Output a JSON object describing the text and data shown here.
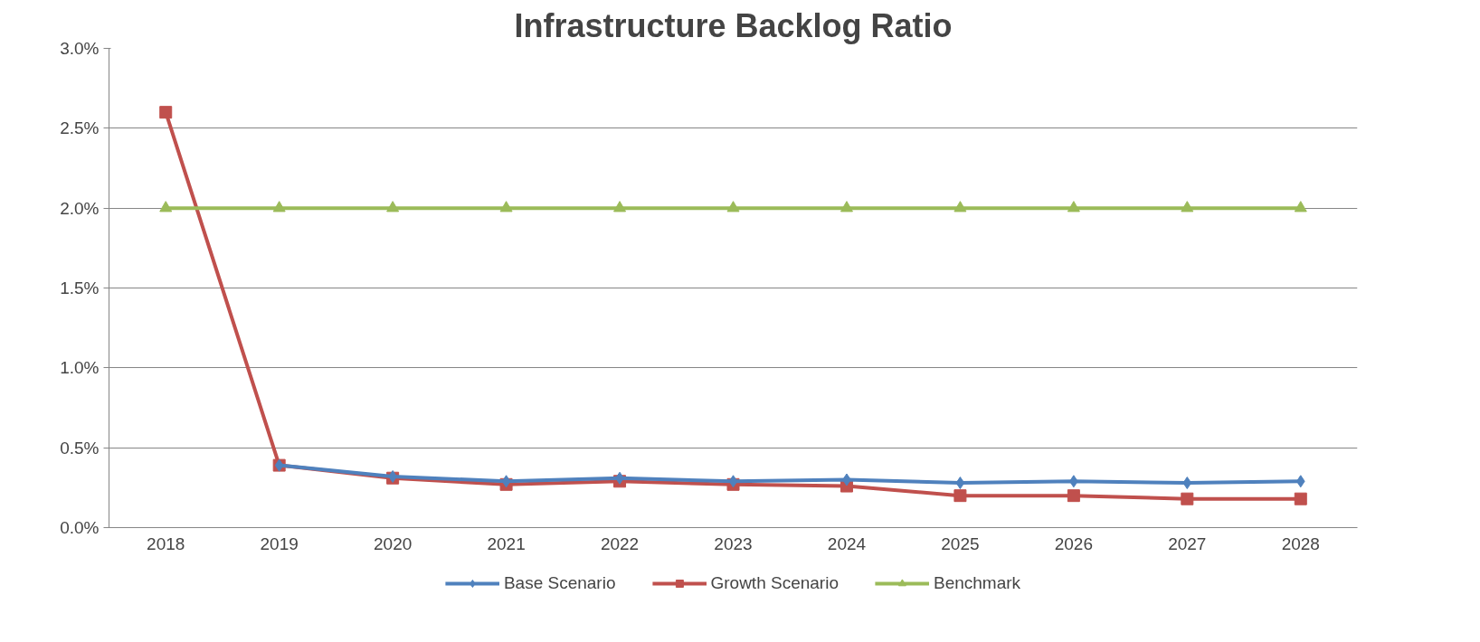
{
  "chart_data": {
    "type": "line",
    "title": "Infrastructure Backlog Ratio",
    "categories": [
      "2018",
      "2019",
      "2020",
      "2021",
      "2022",
      "2023",
      "2024",
      "2025",
      "2026",
      "2027",
      "2028"
    ],
    "series": [
      {
        "name": "Base Scenario",
        "color": "#4f81bd",
        "marker": "diamond",
        "values": [
          null,
          0.39,
          0.32,
          0.29,
          0.31,
          0.29,
          0.3,
          0.28,
          0.29,
          0.28,
          0.29
        ]
      },
      {
        "name": "Growth Scenario",
        "color": "#c0504d",
        "marker": "square",
        "values": [
          2.6,
          0.39,
          0.31,
          0.27,
          0.29,
          0.27,
          0.26,
          0.2,
          0.2,
          0.18,
          0.18
        ]
      },
      {
        "name": "Benchmark",
        "color": "#9bbb59",
        "marker": "triangle",
        "values": [
          2.0,
          2.0,
          2.0,
          2.0,
          2.0,
          2.0,
          2.0,
          2.0,
          2.0,
          2.0,
          2.0
        ]
      }
    ],
    "ylim": [
      0,
      3.0
    ],
    "yticks": [
      {
        "value": 0,
        "label": "0.0%"
      },
      {
        "value": 0.5,
        "label": "0.5%"
      },
      {
        "value": 1.0,
        "label": "1.0%"
      },
      {
        "value": 1.5,
        "label": "1.5%"
      },
      {
        "value": 2.0,
        "label": "2.0%"
      },
      {
        "value": 2.5,
        "label": "2.5%"
      },
      {
        "value": 3.0,
        "label": "3.0%"
      }
    ],
    "grid": "y",
    "legend": "bottom"
  }
}
